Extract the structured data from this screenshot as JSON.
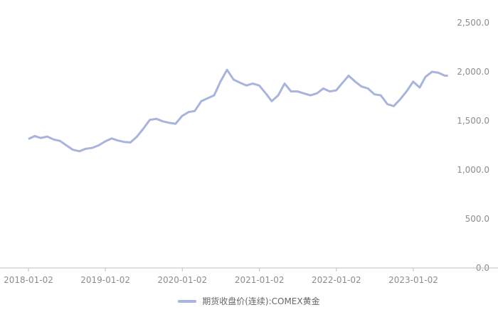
{
  "colors": {
    "series": "#a8b4dc",
    "axis": "#bfbfbf",
    "text": "#8c8c8c"
  },
  "chart_data": {
    "type": "line",
    "title": "",
    "xlabel": "",
    "ylabel": "",
    "ylim": [
      0,
      2500
    ],
    "yticks": [
      "0.0",
      "500.0",
      "1,000.0",
      "1,500.0",
      "2,000.0",
      "2,500.0"
    ],
    "xlim": [
      "2018-01-02",
      "2023-06-30"
    ],
    "xticks": [
      "2018-01-02",
      "2019-01-02",
      "2020-01-02",
      "2021-01-02",
      "2022-01-02",
      "2023-01-02"
    ],
    "grid": false,
    "legend": "bottom",
    "series": [
      {
        "name": "期货收盘价(连续):COMEX黄金",
        "x": [
          "2018-01-02",
          "2018-02-01",
          "2018-03-01",
          "2018-04-01",
          "2018-05-01",
          "2018-06-01",
          "2018-07-01",
          "2018-08-01",
          "2018-09-01",
          "2018-10-01",
          "2018-11-01",
          "2018-12-01",
          "2019-01-01",
          "2019-02-01",
          "2019-03-01",
          "2019-04-01",
          "2019-05-01",
          "2019-06-01",
          "2019-07-01",
          "2019-08-01",
          "2019-09-01",
          "2019-10-01",
          "2019-11-01",
          "2019-12-01",
          "2020-01-01",
          "2020-02-01",
          "2020-03-01",
          "2020-04-01",
          "2020-05-01",
          "2020-06-01",
          "2020-07-01",
          "2020-08-01",
          "2020-09-01",
          "2020-10-01",
          "2020-11-01",
          "2020-12-01",
          "2021-01-01",
          "2021-02-01",
          "2021-03-01",
          "2021-04-01",
          "2021-05-01",
          "2021-06-01",
          "2021-07-01",
          "2021-08-01",
          "2021-09-01",
          "2021-10-01",
          "2021-11-01",
          "2021-12-01",
          "2022-01-01",
          "2022-02-01",
          "2022-03-01",
          "2022-04-01",
          "2022-05-01",
          "2022-06-01",
          "2022-07-01",
          "2022-08-01",
          "2022-09-01",
          "2022-10-01",
          "2022-11-01",
          "2022-12-01",
          "2023-01-01",
          "2023-02-01",
          "2023-03-01",
          "2023-04-01",
          "2023-05-01",
          "2023-06-01",
          "2023-06-15"
        ],
        "values": [
          1315,
          1345,
          1325,
          1340,
          1310,
          1295,
          1250,
          1205,
          1190,
          1215,
          1225,
          1250,
          1290,
          1320,
          1300,
          1285,
          1280,
          1340,
          1420,
          1510,
          1520,
          1495,
          1480,
          1470,
          1550,
          1590,
          1600,
          1700,
          1730,
          1760,
          1900,
          2020,
          1920,
          1890,
          1860,
          1880,
          1860,
          1780,
          1700,
          1760,
          1880,
          1800,
          1800,
          1780,
          1760,
          1780,
          1830,
          1800,
          1810,
          1890,
          1960,
          1900,
          1850,
          1830,
          1770,
          1760,
          1670,
          1650,
          1720,
          1800,
          1900,
          1840,
          1950,
          2000,
          1990,
          1960,
          1960
        ]
      }
    ]
  }
}
